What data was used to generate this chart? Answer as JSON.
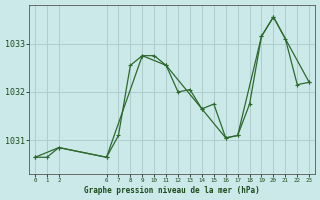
{
  "title": "Graphe pression niveau de la mer (hPa)",
  "bg_color": "#cce9e9",
  "grid_color": "#b0cccc",
  "line_color": "#2d6a2d",
  "xlim": [
    -0.5,
    23.5
  ],
  "ylim": [
    1030.3,
    1033.8
  ],
  "yticks": [
    1031,
    1032,
    1033
  ],
  "xticks": [
    0,
    1,
    2,
    6,
    7,
    8,
    9,
    10,
    11,
    12,
    13,
    14,
    15,
    16,
    17,
    18,
    19,
    20,
    21,
    22,
    23
  ],
  "series1_x": [
    0,
    1,
    2,
    6,
    7,
    8,
    9,
    10,
    11,
    12,
    13,
    14,
    15,
    16,
    17,
    18,
    19,
    20,
    21,
    22,
    23
  ],
  "series1_y": [
    1030.65,
    1030.65,
    1030.85,
    1030.65,
    1031.1,
    1032.55,
    1032.75,
    1032.75,
    1032.55,
    1032.0,
    1032.05,
    1031.65,
    1031.75,
    1031.05,
    1031.1,
    1031.75,
    1033.15,
    1033.55,
    1033.1,
    1032.15,
    1032.2
  ],
  "series2_x": [
    0,
    2,
    6,
    9,
    11,
    14,
    16,
    17,
    19,
    20,
    23
  ],
  "series2_y": [
    1030.65,
    1030.85,
    1030.65,
    1032.75,
    1032.55,
    1031.65,
    1031.05,
    1031.1,
    1033.15,
    1033.55,
    1032.2
  ]
}
